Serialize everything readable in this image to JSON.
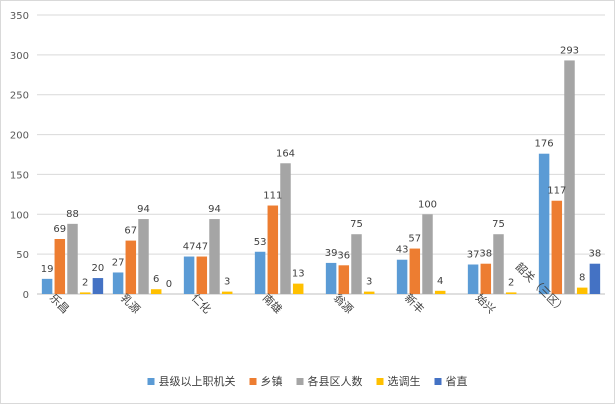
{
  "chart_data": {
    "type": "bar",
    "title": "",
    "xlabel": "",
    "ylabel": "",
    "ylim": [
      0,
      350
    ],
    "yticks": [
      0,
      50,
      100,
      150,
      200,
      250,
      300,
      350
    ],
    "grid": true,
    "legend_position": "bottom",
    "categories": [
      "乐昌",
      "乳源",
      "仁化",
      "南雄",
      "翁源",
      "新丰",
      "始兴",
      "韶关（三区）"
    ],
    "series": [
      {
        "name": "县级以上职机关",
        "color": "#5B9BD5",
        "values": [
          19,
          27,
          47,
          53,
          39,
          43,
          37,
          176
        ]
      },
      {
        "name": "乡镇",
        "color": "#ED7D31",
        "values": [
          69,
          67,
          47,
          111,
          36,
          57,
          38,
          117
        ]
      },
      {
        "name": "各县区人数",
        "color": "#A5A5A5",
        "values": [
          88,
          94,
          94,
          164,
          75,
          100,
          75,
          293
        ]
      },
      {
        "name": "选调生",
        "color": "#FFC000",
        "values": [
          2,
          6,
          3,
          13,
          3,
          4,
          2,
          8
        ]
      },
      {
        "name": "省直",
        "color": "#4472C4",
        "values": [
          20,
          0,
          null,
          null,
          null,
          null,
          null,
          38
        ]
      }
    ],
    "data_labels": [
      [
        "19",
        "27",
        "47",
        "53",
        "39",
        "43",
        "37",
        "176"
      ],
      [
        "69",
        "67",
        "47",
        "111",
        "36",
        "57",
        "38",
        "117"
      ],
      [
        "88",
        "94",
        "94",
        "164",
        "75",
        "100",
        "75",
        "293"
      ],
      [
        "2",
        "6",
        "3",
        "13",
        "3",
        "4",
        "2",
        "8"
      ],
      [
        "20",
        "0",
        "",
        "",
        "",
        "",
        "",
        "38"
      ]
    ]
  }
}
